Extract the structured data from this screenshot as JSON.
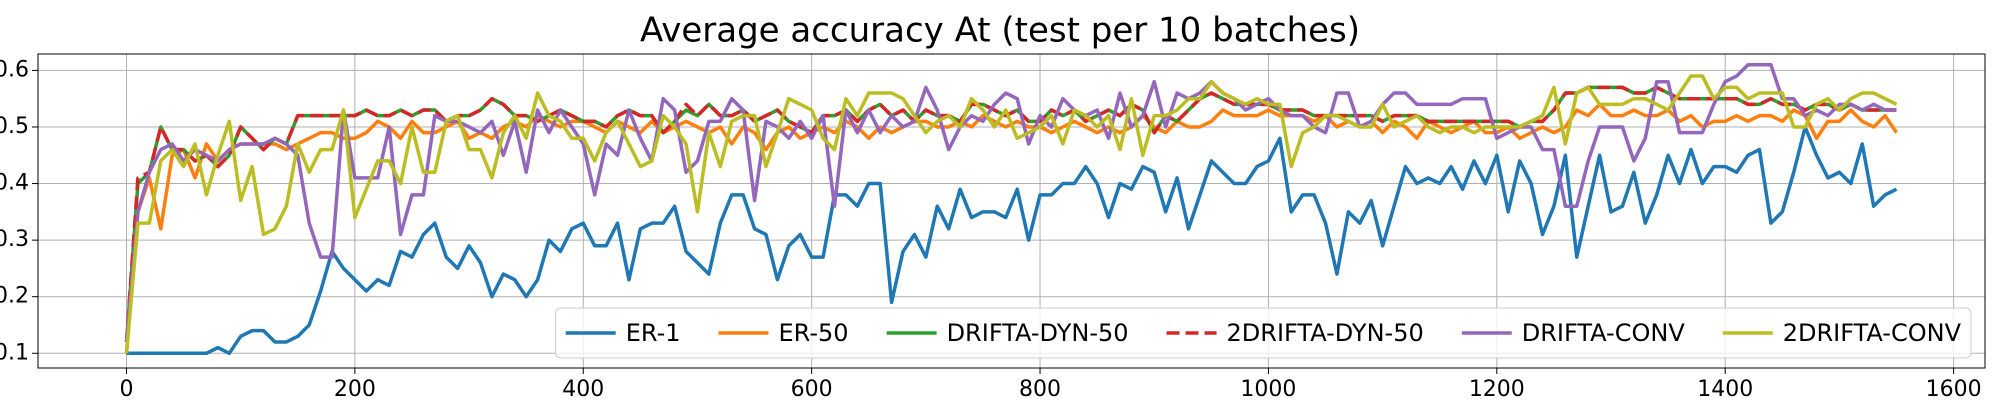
{
  "chart_data": {
    "type": "line",
    "title": "Average accuracy At (test per 10 batches)",
    "x": [
      0,
      10,
      20,
      30,
      40,
      50,
      60,
      70,
      80,
      90,
      100,
      110,
      120,
      130,
      140,
      150,
      160,
      170,
      180,
      190,
      200,
      210,
      220,
      230,
      240,
      250,
      260,
      270,
      280,
      290,
      300,
      310,
      320,
      330,
      340,
      350,
      360,
      370,
      380,
      390,
      400,
      410,
      420,
      430,
      440,
      450,
      460,
      470,
      480,
      490,
      500,
      510,
      520,
      530,
      540,
      550,
      560,
      570,
      580,
      590,
      600,
      610,
      620,
      630,
      640,
      650,
      660,
      670,
      680,
      690,
      700,
      710,
      720,
      730,
      740,
      750,
      760,
      770,
      780,
      790,
      800,
      810,
      820,
      830,
      840,
      850,
      860,
      870,
      880,
      890,
      900,
      910,
      920,
      930,
      940,
      950,
      960,
      970,
      980,
      990,
      1000,
      1010,
      1020,
      1030,
      1040,
      1050,
      1060,
      1070,
      1080,
      1090,
      1100,
      1110,
      1120,
      1130,
      1140,
      1150,
      1160,
      1170,
      1180,
      1190,
      1200,
      1210,
      1220,
      1230,
      1240,
      1250,
      1260,
      1270,
      1280,
      1290,
      1300,
      1310,
      1320,
      1330,
      1340,
      1350,
      1360,
      1370,
      1380,
      1390,
      1400,
      1410,
      1420,
      1430,
      1440,
      1450,
      1460,
      1470,
      1480,
      1490,
      1500,
      1510,
      1520,
      1530,
      1540,
      1550
    ],
    "series": [
      {
        "name": "ER-1",
        "color": "#1f77b4",
        "linestyle": "solid",
        "values": [
          0.1,
          0.1,
          0.1,
          0.1,
          0.1,
          0.1,
          0.1,
          0.1,
          0.11,
          0.1,
          0.13,
          0.14,
          0.14,
          0.12,
          0.12,
          0.13,
          0.15,
          0.21,
          0.28,
          0.25,
          0.23,
          0.21,
          0.23,
          0.22,
          0.28,
          0.27,
          0.31,
          0.33,
          0.27,
          0.25,
          0.29,
          0.26,
          0.2,
          0.24,
          0.23,
          0.2,
          0.23,
          0.3,
          0.28,
          0.32,
          0.33,
          0.29,
          0.29,
          0.33,
          0.23,
          0.32,
          0.33,
          0.33,
          0.36,
          0.28,
          0.26,
          0.24,
          0.33,
          0.38,
          0.38,
          0.32,
          0.31,
          0.23,
          0.29,
          0.31,
          0.27,
          0.27,
          0.38,
          0.38,
          0.36,
          0.4,
          0.4,
          0.19,
          0.28,
          0.31,
          0.27,
          0.36,
          0.32,
          0.39,
          0.34,
          0.35,
          0.35,
          0.34,
          0.39,
          0.3,
          0.38,
          0.38,
          0.4,
          0.4,
          0.43,
          0.4,
          0.34,
          0.4,
          0.39,
          0.43,
          0.42,
          0.35,
          0.41,
          0.32,
          0.38,
          0.44,
          0.42,
          0.4,
          0.4,
          0.43,
          0.44,
          0.48,
          0.35,
          0.38,
          0.38,
          0.33,
          0.24,
          0.35,
          0.33,
          0.37,
          0.29,
          0.36,
          0.43,
          0.4,
          0.41,
          0.4,
          0.43,
          0.39,
          0.44,
          0.4,
          0.45,
          0.35,
          0.44,
          0.4,
          0.31,
          0.36,
          0.45,
          0.27,
          0.36,
          0.45,
          0.35,
          0.36,
          0.42,
          0.33,
          0.38,
          0.45,
          0.4,
          0.46,
          0.4,
          0.43,
          0.43,
          0.42,
          0.45,
          0.46,
          0.33,
          0.35,
          0.42,
          0.5,
          0.45,
          0.41,
          0.42,
          0.4,
          0.47,
          0.36,
          0.38,
          0.39
        ]
      },
      {
        "name": "ER-50",
        "color": "#ff7f0e",
        "linestyle": "solid",
        "values": [
          0.1,
          0.35,
          0.41,
          0.32,
          0.45,
          0.46,
          0.41,
          0.47,
          0.44,
          0.46,
          0.47,
          0.47,
          0.47,
          0.47,
          0.46,
          0.47,
          0.48,
          0.49,
          0.49,
          0.48,
          0.48,
          0.49,
          0.51,
          0.5,
          0.48,
          0.51,
          0.49,
          0.49,
          0.5,
          0.51,
          0.48,
          0.49,
          0.48,
          0.5,
          0.51,
          0.5,
          0.52,
          0.51,
          0.5,
          0.51,
          0.51,
          0.5,
          0.49,
          0.51,
          0.5,
          0.49,
          0.51,
          0.49,
          0.5,
          0.51,
          0.5,
          0.49,
          0.5,
          0.47,
          0.5,
          0.49,
          0.46,
          0.49,
          0.5,
          0.48,
          0.49,
          0.5,
          0.49,
          0.51,
          0.5,
          0.48,
          0.5,
          0.49,
          0.5,
          0.51,
          0.51,
          0.5,
          0.5,
          0.51,
          0.5,
          0.52,
          0.51,
          0.5,
          0.51,
          0.5,
          0.5,
          0.49,
          0.5,
          0.51,
          0.5,
          0.49,
          0.5,
          0.49,
          0.5,
          0.52,
          0.5,
          0.49,
          0.51,
          0.5,
          0.5,
          0.51,
          0.53,
          0.52,
          0.52,
          0.52,
          0.53,
          0.52,
          0.52,
          0.52,
          0.51,
          0.52,
          0.5,
          0.51,
          0.5,
          0.51,
          0.49,
          0.51,
          0.5,
          0.48,
          0.51,
          0.5,
          0.49,
          0.5,
          0.51,
          0.49,
          0.49,
          0.5,
          0.48,
          0.49,
          0.5,
          0.49,
          0.5,
          0.53,
          0.52,
          0.54,
          0.52,
          0.52,
          0.53,
          0.52,
          0.52,
          0.53,
          0.51,
          0.52,
          0.5,
          0.51,
          0.51,
          0.52,
          0.51,
          0.52,
          0.52,
          0.51,
          0.53,
          0.52,
          0.48,
          0.51,
          0.51,
          0.53,
          0.51,
          0.5,
          0.52,
          0.49
        ]
      },
      {
        "name": "DRIFTA-DYN-50",
        "color": "#2ca02c",
        "linestyle": "solid",
        "values": [
          0.12,
          0.4,
          0.42,
          0.5,
          0.46,
          0.46,
          0.44,
          0.45,
          0.43,
          0.45,
          0.5,
          0.48,
          0.46,
          0.48,
          0.47,
          0.52,
          0.52,
          0.52,
          0.52,
          0.52,
          0.52,
          0.53,
          0.52,
          0.52,
          0.53,
          0.52,
          0.53,
          0.53,
          0.51,
          0.52,
          0.52,
          0.53,
          0.55,
          0.54,
          0.52,
          0.52,
          0.51,
          0.52,
          0.53,
          0.52,
          0.51,
          0.51,
          0.5,
          0.52,
          0.53,
          0.52,
          0.52,
          0.49,
          0.51,
          0.53,
          0.52,
          0.54,
          0.52,
          0.52,
          0.53,
          0.51,
          0.52,
          0.53,
          0.51,
          0.5,
          0.49,
          0.52,
          0.52,
          0.53,
          0.51,
          0.53,
          0.54,
          0.52,
          0.53,
          0.51,
          0.53,
          0.52,
          0.52,
          0.51,
          0.54,
          0.54,
          0.53,
          0.52,
          0.53,
          0.51,
          0.51,
          0.53,
          0.52,
          0.53,
          0.51,
          0.52,
          0.53,
          0.52,
          0.54,
          0.53,
          0.49,
          0.52,
          0.51,
          0.53,
          0.55,
          0.56,
          0.55,
          0.54,
          0.54,
          0.54,
          0.54,
          0.53,
          0.53,
          0.53,
          0.52,
          0.52,
          0.52,
          0.52,
          0.52,
          0.52,
          0.51,
          0.52,
          0.52,
          0.52,
          0.51,
          0.51,
          0.51,
          0.51,
          0.51,
          0.51,
          0.51,
          0.51,
          0.5,
          0.51,
          0.51,
          0.53,
          0.56,
          0.56,
          0.57,
          0.57,
          0.57,
          0.57,
          0.56,
          0.56,
          0.57,
          0.56,
          0.55,
          0.55,
          0.55,
          0.55,
          0.55,
          0.55,
          0.54,
          0.54,
          0.55,
          0.54,
          0.54,
          0.53,
          0.54,
          0.54,
          0.53,
          0.54,
          0.53,
          0.53,
          0.53,
          0.53
        ]
      },
      {
        "name": "2DRIFTA-DYN-50",
        "color": "#d62728",
        "linestyle": "dashed",
        "values": [
          0.12,
          0.41,
          0.42,
          0.5,
          0.46,
          0.46,
          0.44,
          0.45,
          0.43,
          0.45,
          0.5,
          0.48,
          0.46,
          0.48,
          0.47,
          0.52,
          0.52,
          0.52,
          0.52,
          0.52,
          0.52,
          0.53,
          0.52,
          0.52,
          0.53,
          0.52,
          0.53,
          0.53,
          0.51,
          0.52,
          0.52,
          0.53,
          0.55,
          0.54,
          0.52,
          0.52,
          0.51,
          0.52,
          0.53,
          0.52,
          0.51,
          0.51,
          0.5,
          0.52,
          0.53,
          0.52,
          0.52,
          0.49,
          0.51,
          0.54,
          0.52,
          0.54,
          0.52,
          0.52,
          0.53,
          0.51,
          0.52,
          0.53,
          0.51,
          0.5,
          0.49,
          0.52,
          0.52,
          0.53,
          0.51,
          0.53,
          0.54,
          0.52,
          0.53,
          0.51,
          0.53,
          0.52,
          0.52,
          0.51,
          0.54,
          0.54,
          0.53,
          0.52,
          0.53,
          0.51,
          0.51,
          0.53,
          0.52,
          0.53,
          0.51,
          0.52,
          0.53,
          0.52,
          0.54,
          0.53,
          0.49,
          0.52,
          0.51,
          0.53,
          0.55,
          0.56,
          0.55,
          0.54,
          0.54,
          0.54,
          0.54,
          0.53,
          0.53,
          0.53,
          0.52,
          0.52,
          0.52,
          0.52,
          0.52,
          0.52,
          0.51,
          0.52,
          0.52,
          0.52,
          0.51,
          0.51,
          0.51,
          0.51,
          0.51,
          0.51,
          0.51,
          0.51,
          0.5,
          0.51,
          0.51,
          0.53,
          0.56,
          0.56,
          0.57,
          0.57,
          0.57,
          0.57,
          0.56,
          0.56,
          0.57,
          0.56,
          0.55,
          0.55,
          0.55,
          0.55,
          0.55,
          0.55,
          0.54,
          0.54,
          0.55,
          0.54,
          0.54,
          0.53,
          0.54,
          0.54,
          0.53,
          0.54,
          0.53,
          0.53,
          0.53,
          0.53
        ]
      },
      {
        "name": "DRIFTA-CONV",
        "color": "#9467bd",
        "linestyle": "solid",
        "values": [
          0.12,
          0.35,
          0.42,
          0.46,
          0.47,
          0.44,
          0.46,
          0.45,
          0.44,
          0.46,
          0.47,
          0.47,
          0.47,
          0.48,
          0.47,
          0.45,
          0.33,
          0.27,
          0.27,
          0.53,
          0.41,
          0.41,
          0.41,
          0.5,
          0.31,
          0.38,
          0.38,
          0.52,
          0.51,
          0.51,
          0.5,
          0.49,
          0.51,
          0.45,
          0.51,
          0.42,
          0.53,
          0.49,
          0.53,
          0.5,
          0.47,
          0.38,
          0.47,
          0.45,
          0.53,
          0.48,
          0.44,
          0.55,
          0.53,
          0.42,
          0.44,
          0.51,
          0.51,
          0.55,
          0.53,
          0.37,
          0.51,
          0.5,
          0.48,
          0.51,
          0.48,
          0.52,
          0.36,
          0.53,
          0.49,
          0.53,
          0.49,
          0.52,
          0.5,
          0.51,
          0.57,
          0.53,
          0.46,
          0.5,
          0.52,
          0.51,
          0.54,
          0.56,
          0.55,
          0.47,
          0.52,
          0.5,
          0.55,
          0.53,
          0.52,
          0.53,
          0.48,
          0.56,
          0.5,
          0.52,
          0.58,
          0.5,
          0.56,
          0.55,
          0.56,
          0.58,
          0.56,
          0.55,
          0.53,
          0.54,
          0.55,
          0.53,
          0.52,
          0.52,
          0.5,
          0.49,
          0.56,
          0.56,
          0.5,
          0.51,
          0.54,
          0.56,
          0.56,
          0.54,
          0.54,
          0.54,
          0.54,
          0.55,
          0.55,
          0.55,
          0.48,
          0.49,
          0.5,
          0.5,
          0.46,
          0.46,
          0.36,
          0.36,
          0.44,
          0.5,
          0.5,
          0.5,
          0.44,
          0.48,
          0.58,
          0.58,
          0.49,
          0.49,
          0.49,
          0.54,
          0.58,
          0.59,
          0.61,
          0.61,
          0.61,
          0.55,
          0.55,
          0.52,
          0.53,
          0.52,
          0.54,
          0.54,
          0.53,
          0.54,
          0.53,
          0.53
        ]
      },
      {
        "name": "2DRIFTA-CONV",
        "color": "#bcbd22",
        "linestyle": "solid",
        "values": [
          0.1,
          0.33,
          0.33,
          0.44,
          0.46,
          0.43,
          0.47,
          0.38,
          0.45,
          0.51,
          0.37,
          0.43,
          0.31,
          0.32,
          0.36,
          0.47,
          0.42,
          0.46,
          0.46,
          0.53,
          0.34,
          0.39,
          0.44,
          0.44,
          0.4,
          0.5,
          0.42,
          0.42,
          0.51,
          0.52,
          0.46,
          0.46,
          0.41,
          0.49,
          0.52,
          0.48,
          0.56,
          0.52,
          0.51,
          0.48,
          0.48,
          0.44,
          0.49,
          0.51,
          0.47,
          0.43,
          0.44,
          0.52,
          0.5,
          0.47,
          0.35,
          0.49,
          0.43,
          0.51,
          0.52,
          0.52,
          0.43,
          0.49,
          0.55,
          0.54,
          0.53,
          0.48,
          0.46,
          0.55,
          0.52,
          0.56,
          0.56,
          0.56,
          0.55,
          0.52,
          0.49,
          0.51,
          0.52,
          0.5,
          0.55,
          0.53,
          0.5,
          0.53,
          0.48,
          0.49,
          0.5,
          0.52,
          0.47,
          0.53,
          0.52,
          0.5,
          0.52,
          0.46,
          0.55,
          0.45,
          0.52,
          0.52,
          0.53,
          0.55,
          0.55,
          0.58,
          0.56,
          0.55,
          0.54,
          0.55,
          0.54,
          0.54,
          0.43,
          0.49,
          0.5,
          0.52,
          0.52,
          0.51,
          0.5,
          0.5,
          0.54,
          0.5,
          0.51,
          0.52,
          0.5,
          0.49,
          0.5,
          0.5,
          0.49,
          0.5,
          0.5,
          0.5,
          0.5,
          0.51,
          0.52,
          0.57,
          0.47,
          0.56,
          0.57,
          0.54,
          0.54,
          0.54,
          0.55,
          0.55,
          0.54,
          0.53,
          0.56,
          0.59,
          0.59,
          0.55,
          0.57,
          0.57,
          0.55,
          0.56,
          0.56,
          0.56,
          0.5,
          0.5,
          0.54,
          0.55,
          0.53,
          0.55,
          0.56,
          0.56,
          0.55,
          0.54
        ]
      }
    ],
    "xlim": [
      -77.5,
      1627.5
    ],
    "ylim": [
      0.074,
      0.629
    ],
    "xticks": [
      0,
      200,
      400,
      600,
      800,
      1000,
      1200,
      1400,
      1600
    ],
    "yticks": [
      0.1,
      0.2,
      0.3,
      0.4,
      0.5,
      0.6
    ],
    "grid": true,
    "legend": "lower right"
  }
}
